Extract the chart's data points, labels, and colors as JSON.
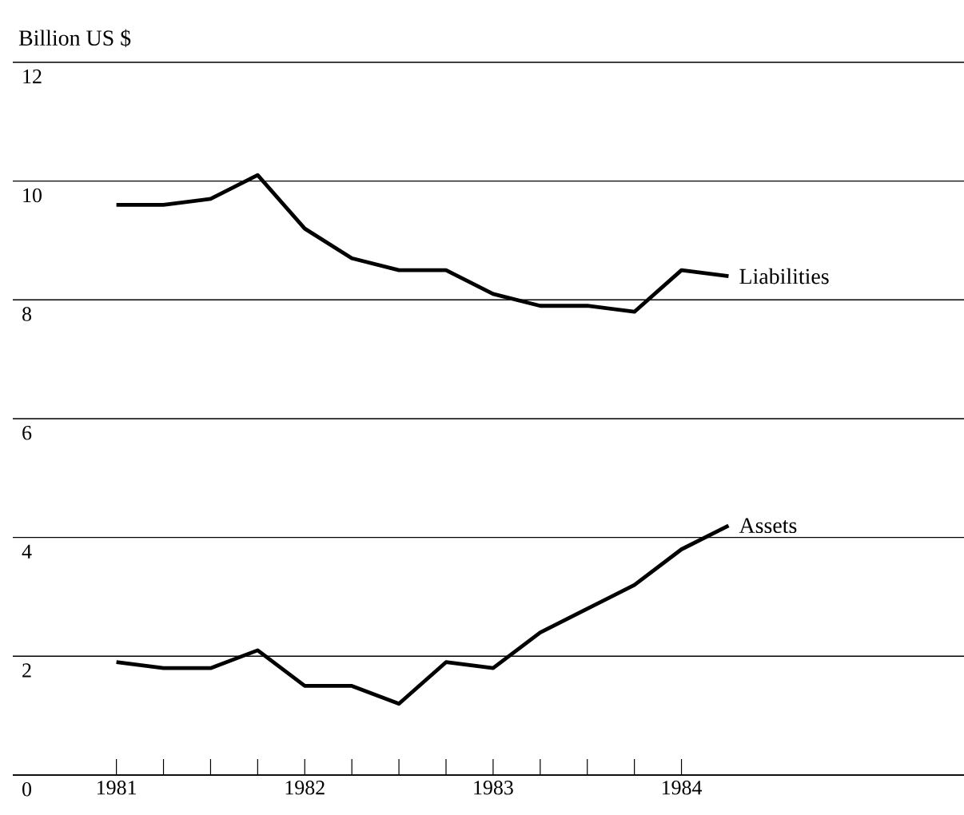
{
  "chart_data": {
    "type": "line",
    "ylabel": "Billion US $",
    "x": [
      1981,
      1981.25,
      1981.5,
      1981.75,
      1982,
      1982.25,
      1982.5,
      1982.75,
      1983,
      1983.25,
      1983.5,
      1983.75,
      1984,
      1984.25
    ],
    "series": [
      {
        "name": "Liabilities",
        "color": "#000000",
        "values": [
          9.6,
          9.6,
          9.7,
          10.1,
          9.2,
          8.7,
          8.5,
          8.5,
          8.1,
          7.9,
          7.9,
          7.8,
          8.5,
          8.4
        ]
      },
      {
        "name": "Assets",
        "color": "#000000",
        "values": [
          1.9,
          1.8,
          1.8,
          2.1,
          1.5,
          1.5,
          1.2,
          1.9,
          1.8,
          2.4,
          2.8,
          3.2,
          3.8,
          4.2
        ]
      }
    ],
    "xlim": [
      1980.45,
      1985.5
    ],
    "ylim": [
      0,
      12
    ],
    "xticks": [
      1981,
      {
        "value": 1981.25,
        "label": null
      },
      {
        "value": 1981.5,
        "label": null
      },
      {
        "value": 1981.75,
        "label": null
      },
      1982,
      {
        "value": 1982.25,
        "label": null
      },
      {
        "value": 1982.5,
        "label": null
      },
      {
        "value": 1982.75,
        "label": null
      },
      1983,
      {
        "value": 1983.25,
        "label": null
      },
      {
        "value": 1983.5,
        "label": null
      },
      {
        "value": 1983.75,
        "label": null
      },
      1984
    ],
    "yticks": [
      0,
      2,
      4,
      6,
      8,
      10,
      12
    ],
    "grid": "y"
  }
}
